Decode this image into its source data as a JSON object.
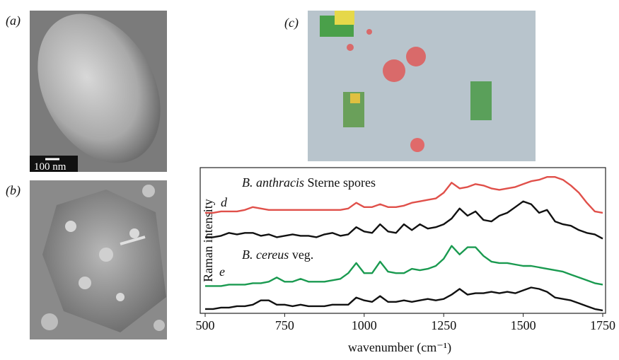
{
  "panels": {
    "a": {
      "label": "(a)",
      "scale_bar": "100 nm"
    },
    "b": {
      "label": "(b)"
    },
    "c": {
      "label": "(c)"
    }
  },
  "chart_data": {
    "type": "line",
    "ylabel": "Raman intensity",
    "xlabel": "wavenumber (cm⁻¹)",
    "annotations": [
      {
        "italic": "B. anthracis",
        "text": "Sterne spores"
      },
      {
        "italic": "d"
      },
      {
        "italic": "B. cereus",
        "text": "veg."
      },
      {
        "italic": "e"
      }
    ],
    "xlim": [
      500,
      1750
    ],
    "xticks": [
      500,
      750,
      1000,
      1250,
      1500,
      1750
    ],
    "ylim": [
      0,
      100
    ],
    "x": [
      500,
      525,
      550,
      575,
      600,
      625,
      650,
      675,
      700,
      725,
      750,
      775,
      800,
      825,
      850,
      875,
      900,
      925,
      950,
      975,
      1000,
      1025,
      1050,
      1075,
      1100,
      1125,
      1150,
      1175,
      1200,
      1225,
      1250,
      1275,
      1300,
      1325,
      1350,
      1375,
      1400,
      1425,
      1450,
      1475,
      1500,
      1525,
      1550,
      1575,
      1600,
      1625,
      1650,
      1675,
      1700,
      1725,
      1750
    ],
    "series": [
      {
        "color": "#e0504a",
        "values": [
          70,
          70,
          71,
          71,
          71,
          72,
          74,
          73,
          72,
          72,
          72,
          72,
          72,
          72,
          72,
          72,
          72,
          72,
          73,
          77,
          74,
          74,
          76,
          74,
          74,
          75,
          77,
          78,
          79,
          80,
          84,
          91,
          87,
          88,
          90,
          89,
          87,
          86,
          87,
          88,
          90,
          92,
          93,
          95,
          95,
          93,
          89,
          84,
          77,
          71,
          70
        ]
      },
      {
        "color": "#111111",
        "values": [
          53,
          53,
          54,
          56,
          55,
          56,
          56,
          54,
          55,
          53,
          54,
          55,
          54,
          54,
          53,
          55,
          56,
          54,
          55,
          60,
          57,
          56,
          62,
          57,
          56,
          62,
          58,
          62,
          59,
          60,
          62,
          66,
          73,
          68,
          71,
          65,
          64,
          68,
          70,
          74,
          78,
          76,
          70,
          72,
          64,
          62,
          61,
          58,
          56,
          55,
          52
        ]
      },
      {
        "color": "#1a9a50",
        "values": [
          19,
          19,
          19,
          20,
          20,
          20,
          21,
          21,
          22,
          25,
          22,
          22,
          24,
          22,
          22,
          22,
          23,
          24,
          28,
          35,
          28,
          28,
          36,
          29,
          28,
          28,
          31,
          30,
          31,
          33,
          38,
          47,
          41,
          46,
          46,
          40,
          36,
          35,
          35,
          34,
          33,
          33,
          32,
          31,
          30,
          29,
          27,
          25,
          23,
          21,
          20
        ]
      },
      {
        "color": "#111111",
        "values": [
          3,
          3,
          4,
          4,
          5,
          5,
          6,
          9,
          9,
          6,
          6,
          5,
          6,
          5,
          5,
          5,
          6,
          6,
          6,
          11,
          9,
          8,
          12,
          8,
          8,
          9,
          8,
          9,
          10,
          9,
          10,
          13,
          17,
          13,
          14,
          14,
          15,
          14,
          15,
          14,
          16,
          18,
          17,
          15,
          11,
          10,
          9,
          7,
          5,
          3,
          2
        ]
      }
    ]
  }
}
